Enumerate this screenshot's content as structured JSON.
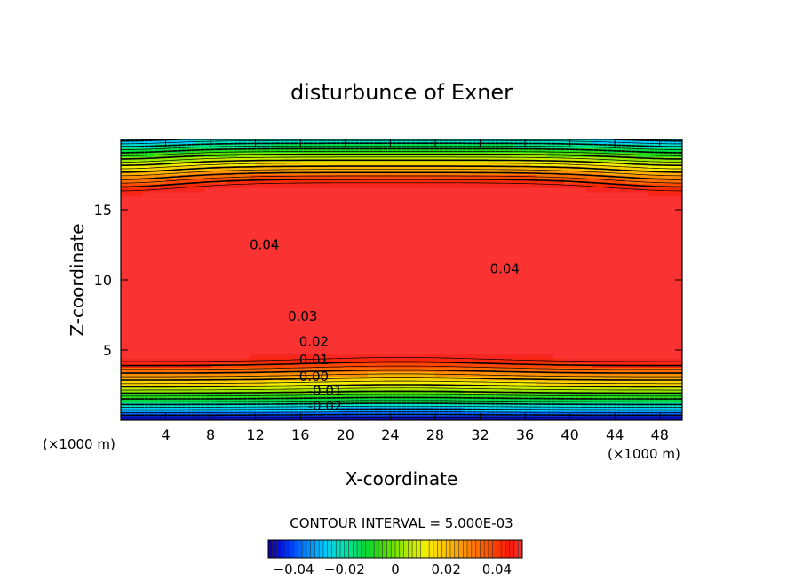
{
  "chart_data": {
    "type": "heatmap",
    "title": "disturbunce of Exner",
    "xlabel": "X-coordinate",
    "ylabel": "Z-coordinate",
    "x_unit": "(×1000 m)",
    "x_unit_right": "(×1000 m)",
    "xlim": [
      0,
      50
    ],
    "ylim": [
      0,
      20
    ],
    "x_ticks": [
      4,
      8,
      12,
      16,
      20,
      24,
      28,
      32,
      36,
      40,
      44,
      48
    ],
    "y_ticks": [
      5,
      10,
      15
    ],
    "contour_interval_text": "CONTOUR INTERVAL = 5.000E-03",
    "contour_interval": 0.005,
    "contour_labels": [
      {
        "text": "0.04",
        "x": 12.8,
        "z": 12.5
      },
      {
        "text": "0.04",
        "x": 34.2,
        "z": 10.8
      },
      {
        "text": "0.03",
        "x": 16.2,
        "z": 7.4
      },
      {
        "text": "0.02",
        "x": 17.2,
        "z": 5.6
      },
      {
        "text": "0.01",
        "x": 17.2,
        "z": 4.3
      },
      {
        "text": "0.00",
        "x": 17.2,
        "z": 3.1
      },
      {
        "text": "-0.01",
        "x": 18.2,
        "z": 2.1
      },
      {
        "text": "-0.02",
        "x": 18.2,
        "z": 1.0
      }
    ],
    "colorbar": {
      "range": [
        -0.05,
        0.05
      ],
      "ticks": [
        {
          "value": -0.04,
          "label": "−0.04"
        },
        {
          "value": -0.02,
          "label": "−0.02"
        },
        {
          "value": 0,
          "label": "0"
        },
        {
          "value": 0.02,
          "label": "0.02"
        },
        {
          "value": 0.04,
          "label": "0.04"
        }
      ]
    }
  }
}
